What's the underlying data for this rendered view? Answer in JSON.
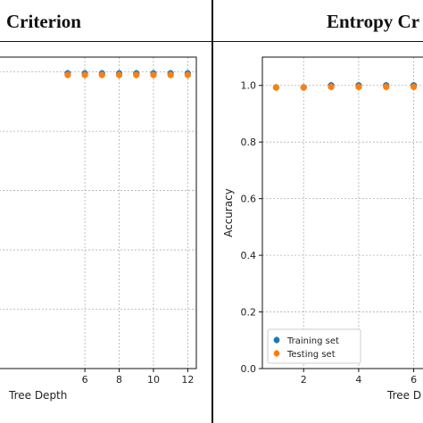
{
  "panels": {
    "left_title": "Criterion",
    "right_title": "Entropy Cr"
  },
  "chart_data": [
    {
      "type": "scatter",
      "title": "Criterion",
      "xlabel": "Tree Depth",
      "ylabel": "",
      "xlim": [
        1,
        12.5
      ],
      "ylim": [
        0.0,
        1.05
      ],
      "xticks": [
        6,
        8,
        10,
        12
      ],
      "xtick_labels": [
        "6",
        "8",
        "10",
        "12"
      ],
      "yticks": [
        0.2,
        0.4,
        0.6,
        0.8,
        1.0
      ],
      "grid": true,
      "series": [
        {
          "name": "Training set",
          "color": "#1f77b4",
          "x": [
            5,
            6,
            7,
            8,
            9,
            10,
            11,
            12
          ],
          "y": [
            0.995,
            0.995,
            0.995,
            0.995,
            0.995,
            0.995,
            0.995,
            0.995
          ]
        },
        {
          "name": "Testing set",
          "color": "#ff7f0e",
          "x": [
            5,
            6,
            7,
            8,
            9,
            10,
            11,
            12
          ],
          "y": [
            0.99,
            0.99,
            0.99,
            0.99,
            0.99,
            0.99,
            0.99,
            0.99
          ]
        }
      ]
    },
    {
      "type": "scatter",
      "title": "Entropy Cr",
      "xlabel": "Tree D",
      "ylabel": "Accuracy",
      "xlim": [
        0.5,
        6.5
      ],
      "ylim": [
        0.0,
        1.1
      ],
      "xticks": [
        2,
        4,
        6
      ],
      "xtick_labels": [
        "2",
        "4",
        "6"
      ],
      "yticks": [
        0.0,
        0.2,
        0.4,
        0.6,
        0.8,
        1.0
      ],
      "ytick_labels": [
        "0.0",
        "0.2",
        "0.4",
        "0.6",
        "0.8",
        "1.0"
      ],
      "grid": true,
      "legend": {
        "placement": "lower-left",
        "entries": [
          "Training set",
          "Testing set"
        ]
      },
      "series": [
        {
          "name": "Training set",
          "color": "#1f77b4",
          "x": [
            1,
            2,
            3,
            4,
            5,
            6
          ],
          "y": [
            0.993,
            0.993,
            1.0,
            1.0,
            1.0,
            1.0
          ]
        },
        {
          "name": "Testing set",
          "color": "#ff7f0e",
          "x": [
            1,
            2,
            3,
            4,
            5,
            6
          ],
          "y": [
            0.993,
            0.993,
            0.995,
            0.995,
            0.995,
            0.995
          ]
        }
      ]
    }
  ]
}
